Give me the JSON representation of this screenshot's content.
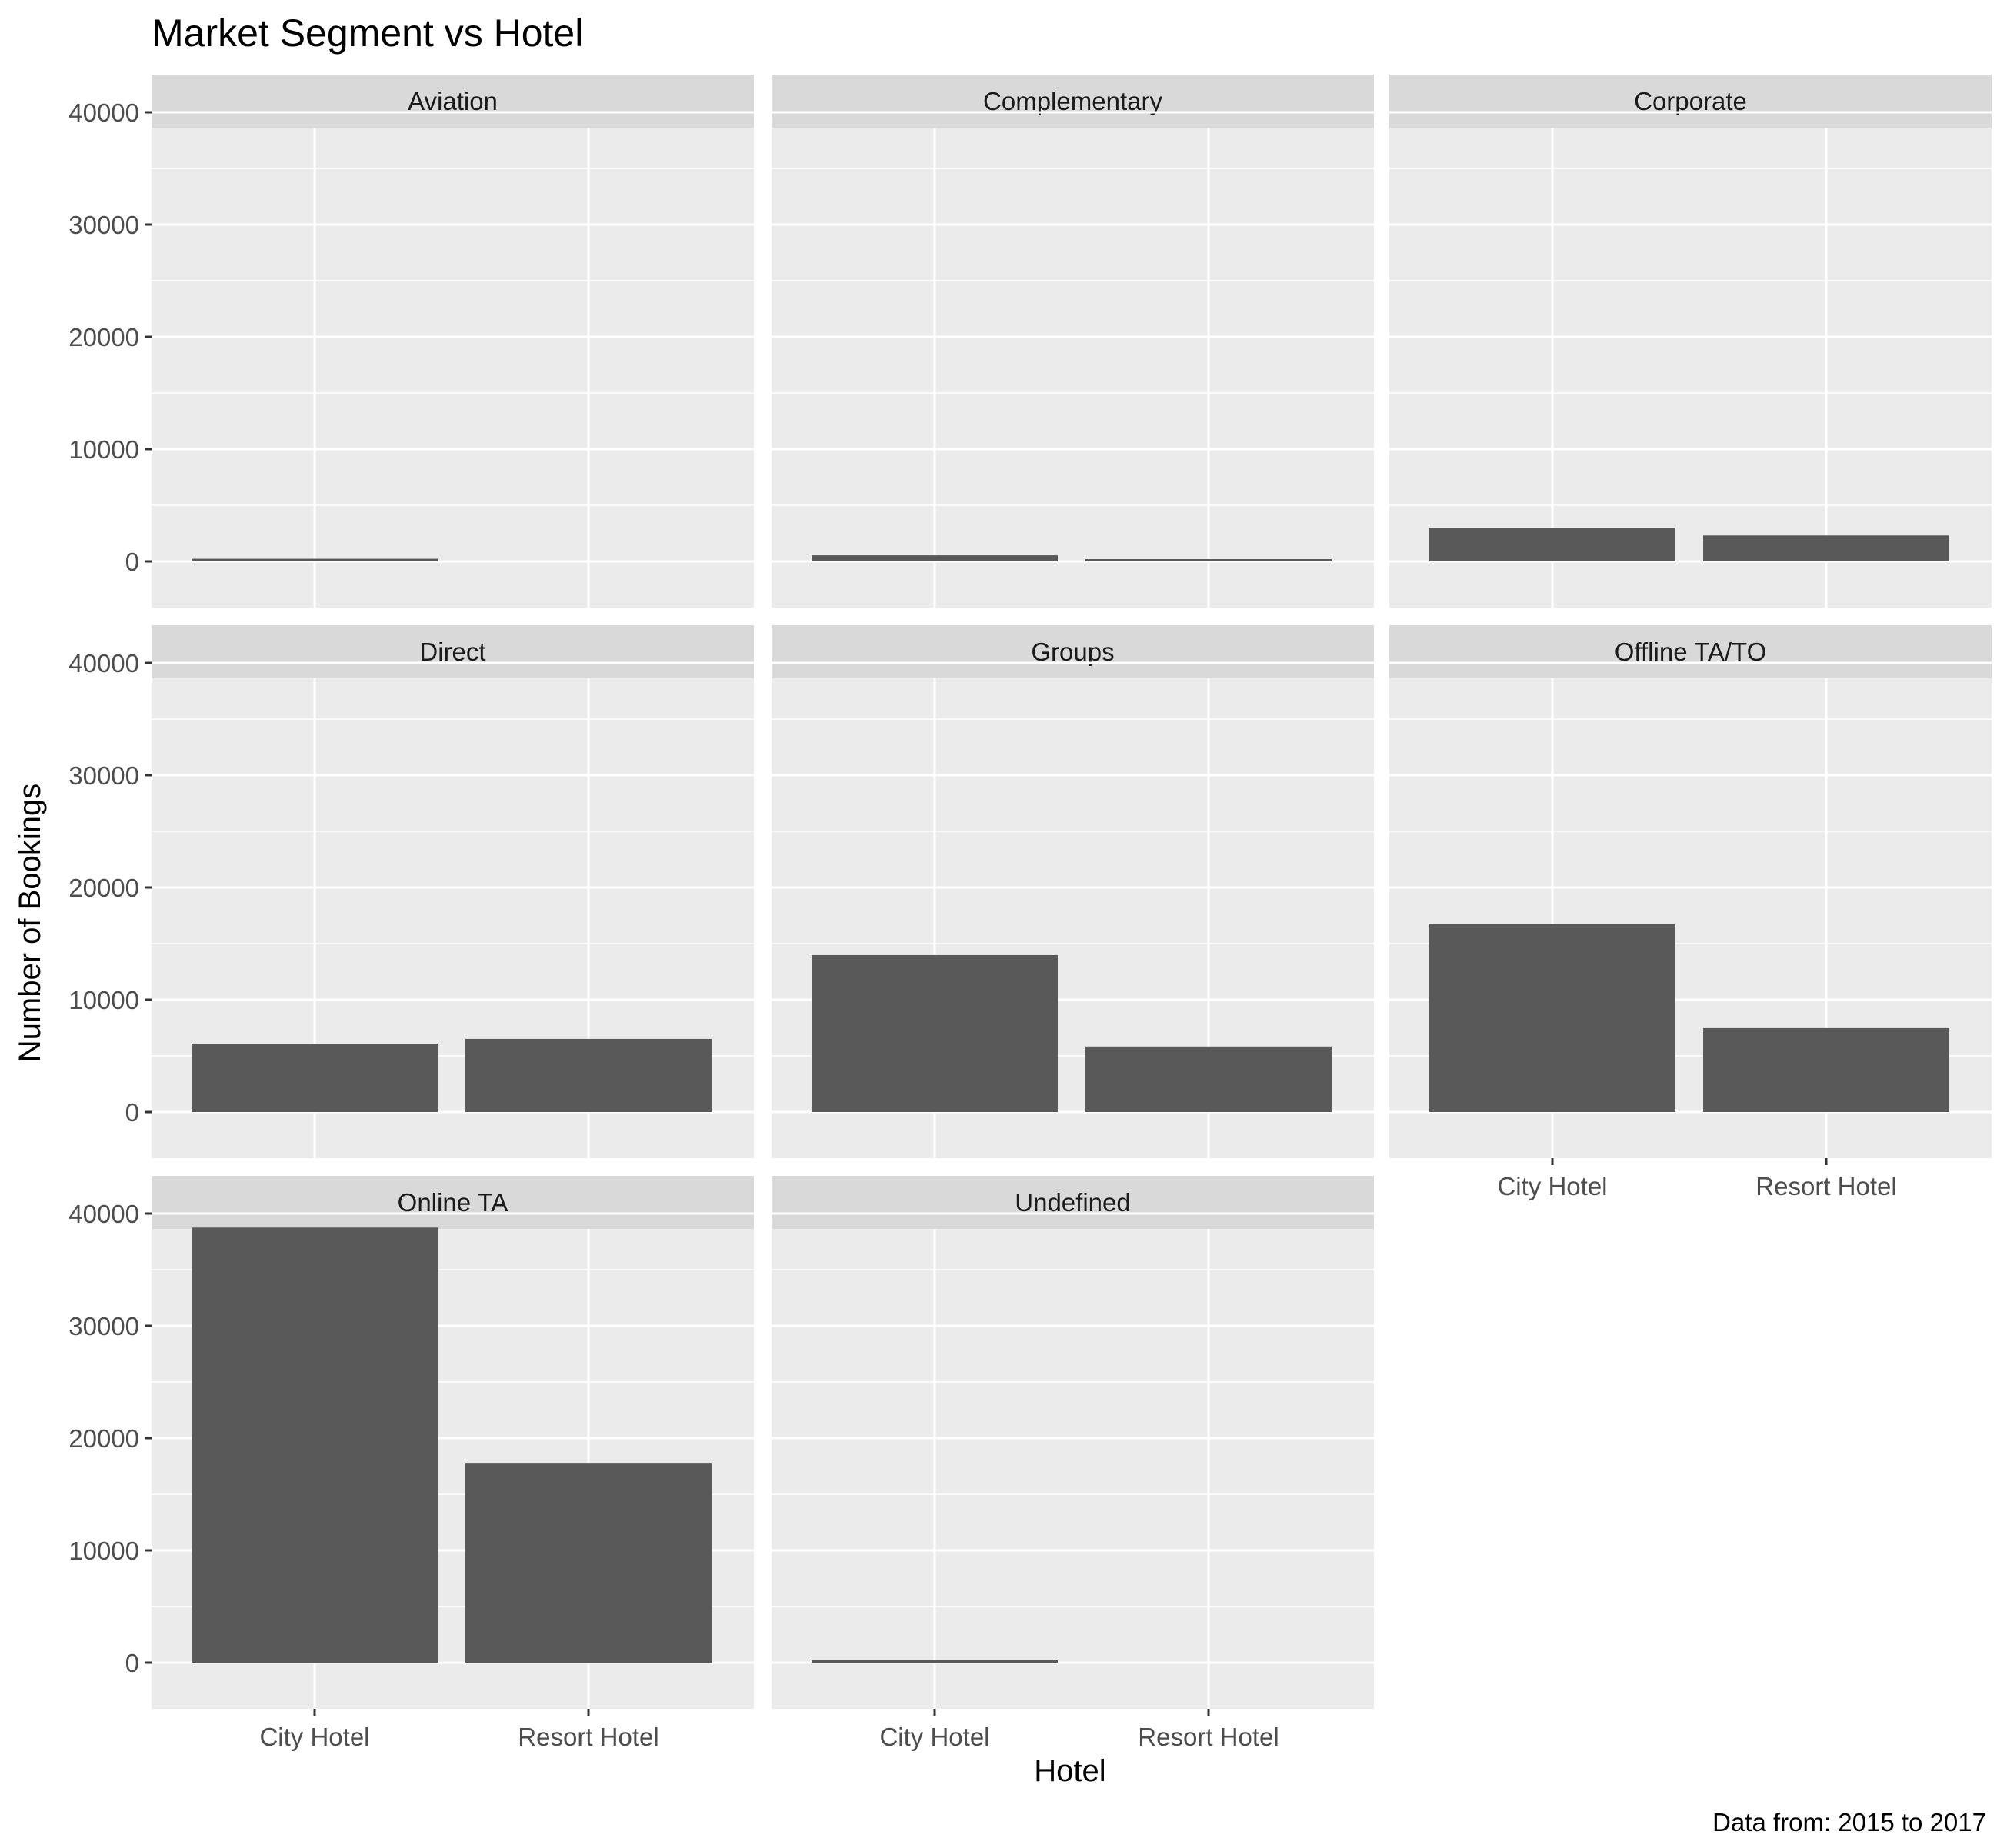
{
  "chart_data": {
    "type": "bar",
    "title": "Market Segment vs Hotel",
    "xlabel": "Hotel",
    "ylabel": "Number of Bookings",
    "caption": "Data from: 2015 to 2017",
    "categories": [
      "City Hotel",
      "Resort Hotel"
    ],
    "ylim": [
      0,
      40000
    ],
    "y_ticks": [
      "0",
      "10000",
      "20000",
      "30000",
      "40000"
    ],
    "y_minor_breaks": [
      5000,
      15000,
      25000,
      35000
    ],
    "grid": true,
    "facet_layout": "3 columns x 3 rows",
    "colors": {
      "bar": "#595959",
      "panel_background": "#ebebeb",
      "strip_background": "#d9d9d9",
      "gridline": "#ffffff"
    },
    "panels": [
      {
        "name": "Aviation",
        "values": [
          237,
          0
        ]
      },
      {
        "name": "Complementary",
        "values": [
          542,
          201
        ]
      },
      {
        "name": "Corporate",
        "values": [
          2986,
          2309
        ]
      },
      {
        "name": "Direct",
        "values": [
          6093,
          6513
        ]
      },
      {
        "name": "Groups",
        "values": [
          13975,
          5836
        ]
      },
      {
        "name": "Offline TA/TO",
        "values": [
          16747,
          7472
        ]
      },
      {
        "name": "Online TA",
        "values": [
          38748,
          17729
        ]
      },
      {
        "name": "Undefined",
        "values": [
          2,
          0
        ]
      }
    ]
  }
}
